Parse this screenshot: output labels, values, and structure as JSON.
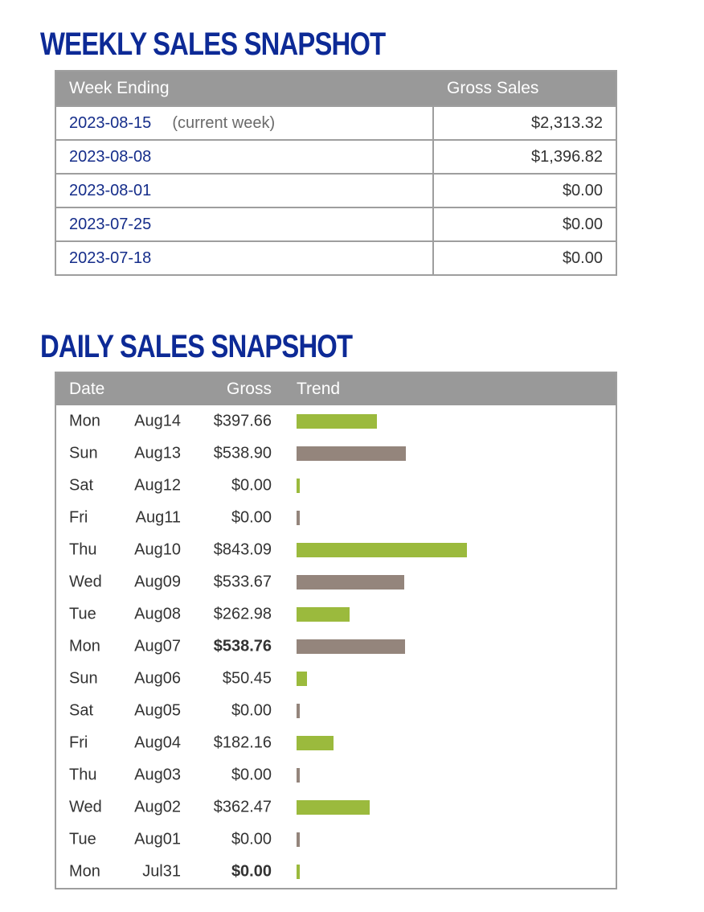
{
  "weekly": {
    "title": "WEEKLY SALES SNAPSHOT",
    "headers": {
      "week": "Week Ending",
      "gross": "Gross Sales"
    },
    "rows": [
      {
        "week": "2023-08-15",
        "note": "(current week)",
        "gross": "$2,313.32"
      },
      {
        "week": "2023-08-08",
        "note": "",
        "gross": "$1,396.82"
      },
      {
        "week": "2023-08-01",
        "note": "",
        "gross": "$0.00"
      },
      {
        "week": "2023-07-25",
        "note": "",
        "gross": "$0.00"
      },
      {
        "week": "2023-07-18",
        "note": "",
        "gross": "$0.00"
      }
    ]
  },
  "daily": {
    "title": "DAILY SALES SNAPSHOT",
    "headers": {
      "date": "Date",
      "gross": "Gross",
      "trend": "Trend"
    },
    "colors": {
      "green": "#9bba3d",
      "brown": "#94857c"
    },
    "rows": [
      {
        "day": "Mon",
        "date": "Aug14",
        "gross": "$397.66",
        "value": 397.66,
        "bold": false,
        "color": "green"
      },
      {
        "day": "Sun",
        "date": "Aug13",
        "gross": "$538.90",
        "value": 538.9,
        "bold": false,
        "color": "brown"
      },
      {
        "day": "Sat",
        "date": "Aug12",
        "gross": "$0.00",
        "value": 0,
        "bold": false,
        "color": "green"
      },
      {
        "day": "Fri",
        "date": "Aug11",
        "gross": "$0.00",
        "value": 0,
        "bold": false,
        "color": "brown"
      },
      {
        "day": "Thu",
        "date": "Aug10",
        "gross": "$843.09",
        "value": 843.09,
        "bold": false,
        "color": "green"
      },
      {
        "day": "Wed",
        "date": "Aug09",
        "gross": "$533.67",
        "value": 533.67,
        "bold": false,
        "color": "brown"
      },
      {
        "day": "Tue",
        "date": "Aug08",
        "gross": "$262.98",
        "value": 262.98,
        "bold": false,
        "color": "green"
      },
      {
        "day": "Mon",
        "date": "Aug07",
        "gross": "$538.76",
        "value": 538.76,
        "bold": true,
        "color": "brown"
      },
      {
        "day": "Sun",
        "date": "Aug06",
        "gross": "$50.45",
        "value": 50.45,
        "bold": false,
        "color": "green"
      },
      {
        "day": "Sat",
        "date": "Aug05",
        "gross": "$0.00",
        "value": 0,
        "bold": false,
        "color": "brown"
      },
      {
        "day": "Fri",
        "date": "Aug04",
        "gross": "$182.16",
        "value": 182.16,
        "bold": false,
        "color": "green"
      },
      {
        "day": "Thu",
        "date": "Aug03",
        "gross": "$0.00",
        "value": 0,
        "bold": false,
        "color": "brown"
      },
      {
        "day": "Wed",
        "date": "Aug02",
        "gross": "$362.47",
        "value": 362.47,
        "bold": false,
        "color": "green"
      },
      {
        "day": "Tue",
        "date": "Aug01",
        "gross": "$0.00",
        "value": 0,
        "bold": false,
        "color": "brown"
      },
      {
        "day": "Mon",
        "date": "Jul31",
        "gross": "$0.00",
        "value": 0,
        "bold": true,
        "color": "green"
      }
    ]
  }
}
